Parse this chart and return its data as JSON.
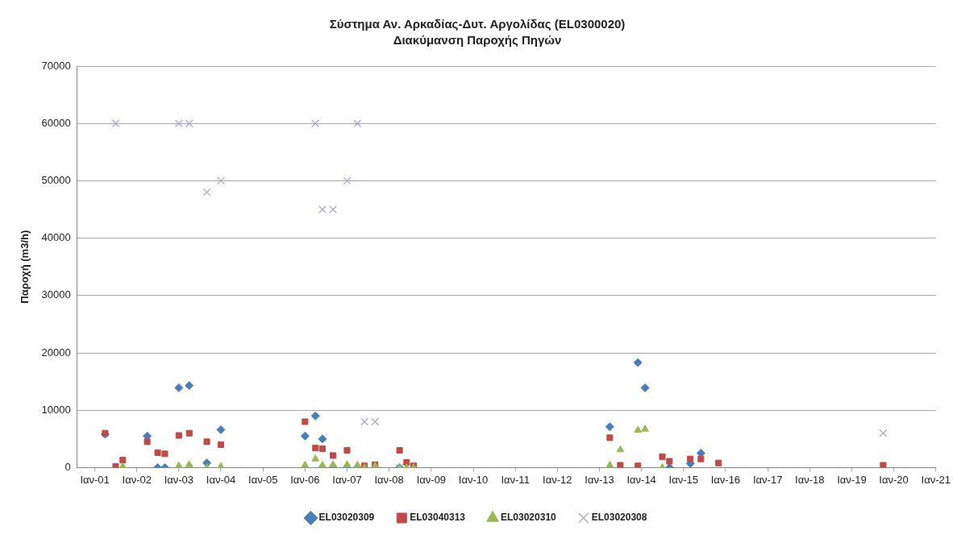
{
  "chart_data": {
    "type": "scatter",
    "title": "Σύστημα Αν. Αρκαδίας-Δυτ. Αργολίδας (EL0300020)",
    "subtitle": "Διακύμανση Παροχής Πηγών",
    "ylabel": "Παροχή (m3/h)",
    "xlim": [
      "2000-08",
      "2021-01"
    ],
    "xticks": [
      {
        "value": "2001-01",
        "label": "Ιαν-01"
      },
      {
        "value": "2002-01",
        "label": "Ιαν-02"
      },
      {
        "value": "2003-01",
        "label": "Ιαν-03"
      },
      {
        "value": "2004-01",
        "label": "Ιαν-04"
      },
      {
        "value": "2005-01",
        "label": "Ιαν-05"
      },
      {
        "value": "2006-01",
        "label": "Ιαν-06"
      },
      {
        "value": "2007-01",
        "label": "Ιαν-07"
      },
      {
        "value": "2008-01",
        "label": "Ιαν-08"
      },
      {
        "value": "2009-01",
        "label": "Ιαν-09"
      },
      {
        "value": "2010-01",
        "label": "Ιαν-10"
      },
      {
        "value": "2011-01",
        "label": "Ιαν-11"
      },
      {
        "value": "2012-01",
        "label": "Ιαν-12"
      },
      {
        "value": "2013-01",
        "label": "Ιαν-13"
      },
      {
        "value": "2014-01",
        "label": "Ιαν-14"
      },
      {
        "value": "2015-01",
        "label": "Ιαν-15"
      },
      {
        "value": "2016-01",
        "label": "Ιαν-16"
      },
      {
        "value": "2017-01",
        "label": "Ιαν-17"
      },
      {
        "value": "2018-01",
        "label": "Ιαν-18"
      },
      {
        "value": "2019-01",
        "label": "Ιαν-19"
      },
      {
        "value": "2020-01",
        "label": "Ιαν-20"
      },
      {
        "value": "2021-01",
        "label": "Ιαν-21"
      }
    ],
    "ylim": [
      0,
      70000
    ],
    "yticks": [
      0,
      10000,
      20000,
      30000,
      40000,
      50000,
      60000,
      70000
    ],
    "grid": "y",
    "legend": "bottom",
    "series": [
      {
        "name": "EL03020309",
        "color": "#4a7ebb",
        "marker": "diamond",
        "x": [
          "2001-04",
          "2002-04",
          "2002-07",
          "2002-09",
          "2003-01",
          "2003-04",
          "2003-09",
          "2004-01",
          "2006-01",
          "2006-04",
          "2006-06",
          "2006-09",
          "2007-01",
          "2007-04",
          "2007-09",
          "2008-04",
          "2013-04",
          "2013-12",
          "2014-02",
          "2014-09",
          "2015-03",
          "2015-06"
        ],
        "values": [
          5800,
          5500,
          0,
          0,
          13900,
          14300,
          800,
          6600,
          5500,
          9000,
          5000,
          0,
          0,
          0,
          0,
          0,
          7100,
          18300,
          13900,
          0,
          700,
          2500
        ]
      },
      {
        "name": "EL03040313",
        "color": "#be4b48",
        "marker": "square",
        "x": [
          "2001-04",
          "2001-07",
          "2001-09",
          "2002-04",
          "2002-07",
          "2002-09",
          "2003-01",
          "2003-04",
          "2003-09",
          "2004-01",
          "2006-01",
          "2006-04",
          "2006-06",
          "2006-09",
          "2007-01",
          "2007-06",
          "2007-09",
          "2008-04",
          "2008-06",
          "2008-08",
          "2013-04",
          "2013-07",
          "2013-12",
          "2014-07",
          "2014-09",
          "2015-03",
          "2015-06",
          "2015-11",
          "2019-10"
        ],
        "values": [
          6000,
          200,
          1300,
          4500,
          2600,
          2400,
          5600,
          6000,
          4500,
          4000,
          8000,
          3400,
          3300,
          2100,
          3000,
          300,
          500,
          3000,
          900,
          300,
          5200,
          400,
          300,
          1900,
          1100,
          1500,
          1500,
          800,
          400
        ]
      },
      {
        "name": "EL03020310",
        "color": "#98b954",
        "marker": "triangle",
        "x": [
          "2001-09",
          "2003-01",
          "2003-04",
          "2003-09",
          "2004-01",
          "2006-01",
          "2006-04",
          "2006-06",
          "2006-09",
          "2007-01",
          "2007-04",
          "2007-06",
          "2007-09",
          "2008-04",
          "2008-06",
          "2008-08",
          "2013-04",
          "2013-07",
          "2013-12",
          "2014-02",
          "2014-07"
        ],
        "values": [
          200,
          300,
          500,
          0,
          200,
          400,
          1500,
          400,
          500,
          500,
          400,
          0,
          300,
          0,
          0,
          0,
          400,
          3100,
          6500,
          6700,
          0
        ]
      },
      {
        "name": "EL03020308",
        "color": "#aca8c8",
        "marker": "cross",
        "x": [
          "2001-07",
          "2003-01",
          "2003-04",
          "2003-09",
          "2004-01",
          "2006-04",
          "2006-06",
          "2006-09",
          "2007-01",
          "2007-04",
          "2007-06",
          "2007-09",
          "2008-04",
          "2019-10"
        ],
        "values": [
          60000,
          60000,
          60000,
          48000,
          50000,
          60000,
          45000,
          45000,
          50000,
          60000,
          8000,
          8000,
          0,
          6000
        ]
      }
    ]
  }
}
